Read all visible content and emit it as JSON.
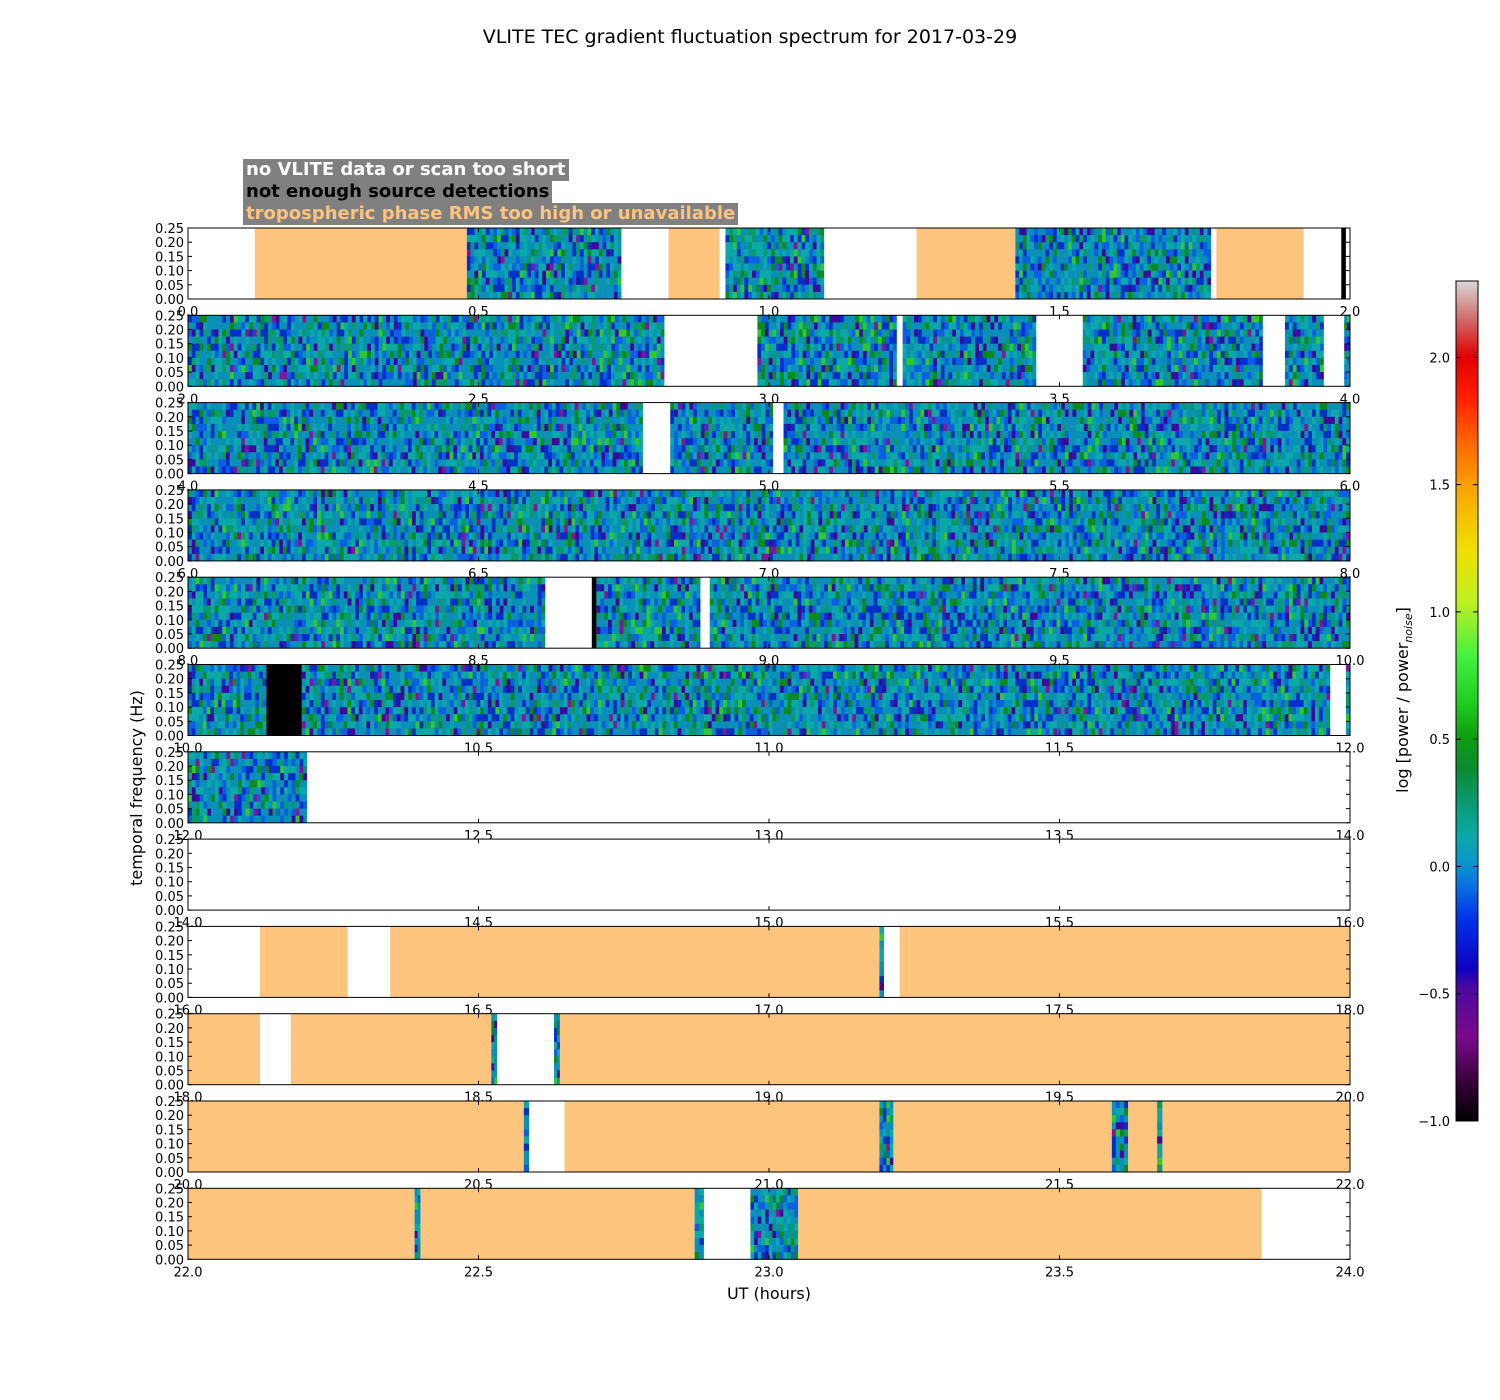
{
  "chart_data": {
    "type": "heatmap",
    "title": "VLITE TEC gradient fluctuation spectrum for 2017-03-29",
    "xlabel": "UT (hours)",
    "ylabel": "temporal frequency (Hz)",
    "colorbar_label": "log [power / power",
    "colorbar_label_subscript": "noise",
    "colorbar_label_close": "]",
    "colorbar_range": [
      -1.0,
      2.3
    ],
    "colorbar_ticks": [
      "−1.0",
      "−0.5",
      "0.0",
      "0.5",
      "1.0",
      "1.5",
      "2.0"
    ],
    "colorbar_tick_values": [
      -1.0,
      -0.5,
      0.0,
      0.5,
      1.0,
      1.5,
      2.0
    ],
    "ylim": [
      0.0,
      0.25
    ],
    "ytick_labels": [
      "0.00",
      "0.05",
      "0.10",
      "0.15",
      "0.20",
      "0.25"
    ],
    "ytick_values": [
      0.0,
      0.05,
      0.1,
      0.15,
      0.2,
      0.25
    ],
    "legend": [
      {
        "label": "no VLITE data or scan too short",
        "color": "#ffffff"
      },
      {
        "label": "not enough source detections",
        "color": "#000000"
      },
      {
        "label": "tropospheric phase RMS too high or unavailable",
        "color": "#fdc47e"
      }
    ],
    "panels": [
      {
        "xlim": [
          0,
          2
        ],
        "xticks": [
          "0.0",
          "0.5",
          "1.0",
          "1.5",
          "2.0"
        ],
        "segments": [
          {
            "x0": 0.0,
            "x1": 0.115,
            "state": "nodata"
          },
          {
            "x0": 0.115,
            "x1": 0.48,
            "state": "trop"
          },
          {
            "x0": 0.48,
            "x1": 0.746,
            "state": "spectrum"
          },
          {
            "x0": 0.746,
            "x1": 0.827,
            "state": "nodata"
          },
          {
            "x0": 0.827,
            "x1": 0.915,
            "state": "trop"
          },
          {
            "x0": 0.915,
            "x1": 0.925,
            "state": "nodata"
          },
          {
            "x0": 0.925,
            "x1": 1.095,
            "state": "spectrum"
          },
          {
            "x0": 1.095,
            "x1": 1.254,
            "state": "nodata"
          },
          {
            "x0": 1.254,
            "x1": 1.424,
            "state": "trop"
          },
          {
            "x0": 1.424,
            "x1": 1.761,
            "state": "spectrum"
          },
          {
            "x0": 1.761,
            "x1": 1.77,
            "state": "nodata"
          },
          {
            "x0": 1.77,
            "x1": 1.92,
            "state": "trop"
          },
          {
            "x0": 1.92,
            "x1": 1.985,
            "state": "nodata"
          },
          {
            "x0": 1.985,
            "x1": 1.993,
            "state": "nodet"
          },
          {
            "x0": 1.993,
            "x1": 2.0,
            "state": "nodata"
          }
        ]
      },
      {
        "xlim": [
          2,
          4
        ],
        "xticks": [
          "2.0",
          "2.5",
          "3.0",
          "3.5",
          "4.0"
        ],
        "segments": [
          {
            "x0": 2.0,
            "x1": 2.82,
            "state": "spectrum"
          },
          {
            "x0": 2.82,
            "x1": 2.98,
            "state": "nodata"
          },
          {
            "x0": 2.98,
            "x1": 3.22,
            "state": "spectrum"
          },
          {
            "x0": 3.22,
            "x1": 3.23,
            "state": "nodata"
          },
          {
            "x0": 3.23,
            "x1": 3.46,
            "state": "spectrum"
          },
          {
            "x0": 3.46,
            "x1": 3.54,
            "state": "nodata"
          },
          {
            "x0": 3.54,
            "x1": 3.85,
            "state": "spectrum"
          },
          {
            "x0": 3.85,
            "x1": 3.888,
            "state": "nodata"
          },
          {
            "x0": 3.888,
            "x1": 3.955,
            "state": "spectrum"
          },
          {
            "x0": 3.955,
            "x1": 3.99,
            "state": "nodata"
          },
          {
            "x0": 3.99,
            "x1": 4.0,
            "state": "spectrum"
          }
        ]
      },
      {
        "xlim": [
          4,
          6
        ],
        "xticks": [
          "4.0",
          "4.5",
          "5.0",
          "5.5",
          "6.0"
        ],
        "segments": [
          {
            "x0": 4.0,
            "x1": 4.783,
            "state": "spectrum"
          },
          {
            "x0": 4.783,
            "x1": 4.83,
            "state": "nodata"
          },
          {
            "x0": 4.83,
            "x1": 5.007,
            "state": "spectrum"
          },
          {
            "x0": 5.007,
            "x1": 5.025,
            "state": "nodata"
          },
          {
            "x0": 5.025,
            "x1": 6.0,
            "state": "spectrum"
          }
        ]
      },
      {
        "xlim": [
          6,
          8
        ],
        "xticks": [
          "6.0",
          "6.5",
          "7.0",
          "7.5",
          "8.0"
        ],
        "segments": [
          {
            "x0": 6.0,
            "x1": 8.0,
            "state": "spectrum"
          }
        ]
      },
      {
        "xlim": [
          8,
          10
        ],
        "xticks": [
          "8.0",
          "8.5",
          "9.0",
          "9.5",
          "10.0"
        ],
        "segments": [
          {
            "x0": 8.0,
            "x1": 8.615,
            "state": "spectrum"
          },
          {
            "x0": 8.615,
            "x1": 8.695,
            "state": "nodata"
          },
          {
            "x0": 8.695,
            "x1": 8.703,
            "state": "nodet"
          },
          {
            "x0": 8.703,
            "x1": 8.882,
            "state": "spectrum"
          },
          {
            "x0": 8.882,
            "x1": 8.898,
            "state": "nodata"
          },
          {
            "x0": 8.898,
            "x1": 10.0,
            "state": "spectrum"
          }
        ]
      },
      {
        "xlim": [
          10,
          12
        ],
        "xticks": [
          "10.0",
          "10.5",
          "11.0",
          "11.5",
          "12.0"
        ],
        "segments": [
          {
            "x0": 10.0,
            "x1": 10.135,
            "state": "spectrum"
          },
          {
            "x0": 10.135,
            "x1": 10.196,
            "state": "nodet"
          },
          {
            "x0": 10.196,
            "x1": 11.966,
            "state": "spectrum"
          },
          {
            "x0": 11.966,
            "x1": 11.993,
            "state": "nodata"
          },
          {
            "x0": 11.993,
            "x1": 12.0,
            "state": "spectrum"
          }
        ]
      },
      {
        "xlim": [
          12,
          14
        ],
        "xticks": [
          "12.0",
          "12.5",
          "13.0",
          "13.5",
          "14.0"
        ],
        "segments": [
          {
            "x0": 12.0,
            "x1": 12.205,
            "state": "spectrum"
          },
          {
            "x0": 12.205,
            "x1": 14.0,
            "state": "nodata"
          }
        ]
      },
      {
        "xlim": [
          14,
          16
        ],
        "xticks": [
          "14.0",
          "14.5",
          "15.0",
          "15.5",
          "16.0"
        ],
        "segments": [
          {
            "x0": 14.0,
            "x1": 16.0,
            "state": "nodata"
          }
        ]
      },
      {
        "xlim": [
          16,
          18
        ],
        "xticks": [
          "16.0",
          "16.5",
          "17.0",
          "17.5",
          "18.0"
        ],
        "segments": [
          {
            "x0": 16.0,
            "x1": 16.124,
            "state": "nodata"
          },
          {
            "x0": 16.124,
            "x1": 16.275,
            "state": "trop"
          },
          {
            "x0": 16.275,
            "x1": 16.348,
            "state": "nodata"
          },
          {
            "x0": 16.348,
            "x1": 17.19,
            "state": "trop"
          },
          {
            "x0": 17.19,
            "x1": 17.198,
            "state": "spectrum"
          },
          {
            "x0": 17.198,
            "x1": 17.225,
            "state": "nodata"
          },
          {
            "x0": 17.225,
            "x1": 18.0,
            "state": "trop"
          }
        ]
      },
      {
        "xlim": [
          18,
          20
        ],
        "xticks": [
          "18.0",
          "18.5",
          "19.0",
          "19.5",
          "20.0"
        ],
        "segments": [
          {
            "x0": 18.0,
            "x1": 18.124,
            "state": "trop"
          },
          {
            "x0": 18.124,
            "x1": 18.177,
            "state": "nodata"
          },
          {
            "x0": 18.177,
            "x1": 18.522,
            "state": "trop"
          },
          {
            "x0": 18.522,
            "x1": 18.532,
            "state": "spectrum"
          },
          {
            "x0": 18.532,
            "x1": 18.63,
            "state": "nodata"
          },
          {
            "x0": 18.63,
            "x1": 18.64,
            "state": "spectrum"
          },
          {
            "x0": 18.64,
            "x1": 20.0,
            "state": "trop"
          }
        ]
      },
      {
        "xlim": [
          20,
          22
        ],
        "xticks": [
          "20.0",
          "20.5",
          "21.0",
          "21.5",
          "22.0"
        ],
        "segments": [
          {
            "x0": 20.0,
            "x1": 20.578,
            "state": "trop"
          },
          {
            "x0": 20.578,
            "x1": 20.587,
            "state": "spectrum"
          },
          {
            "x0": 20.587,
            "x1": 20.648,
            "state": "nodata"
          },
          {
            "x0": 20.648,
            "x1": 21.19,
            "state": "trop"
          },
          {
            "x0": 21.19,
            "x1": 21.214,
            "state": "spectrum"
          },
          {
            "x0": 21.214,
            "x1": 21.59,
            "state": "trop"
          },
          {
            "x0": 21.59,
            "x1": 21.618,
            "state": "spectrum"
          },
          {
            "x0": 21.618,
            "x1": 21.668,
            "state": "trop"
          },
          {
            "x0": 21.668,
            "x1": 21.677,
            "state": "spectrum"
          },
          {
            "x0": 21.677,
            "x1": 22.0,
            "state": "trop"
          }
        ]
      },
      {
        "xlim": [
          22,
          24
        ],
        "xticks": [
          "22.0",
          "22.5",
          "23.0",
          "23.5",
          "24.0"
        ],
        "segments": [
          {
            "x0": 22.0,
            "x1": 22.39,
            "state": "trop"
          },
          {
            "x0": 22.39,
            "x1": 22.4,
            "state": "spectrum"
          },
          {
            "x0": 22.4,
            "x1": 22.872,
            "state": "trop"
          },
          {
            "x0": 22.872,
            "x1": 22.888,
            "state": "spectrum"
          },
          {
            "x0": 22.888,
            "x1": 22.968,
            "state": "nodata"
          },
          {
            "x0": 22.968,
            "x1": 23.05,
            "state": "spectrum"
          },
          {
            "x0": 23.05,
            "x1": 23.848,
            "state": "trop"
          },
          {
            "x0": 23.848,
            "x1": 24.0,
            "state": "nodata"
          }
        ]
      }
    ]
  },
  "colors": {
    "nodata": "#ffffff",
    "nodet": "#000000",
    "trop": "#fdc47e",
    "legend_box": "#808080",
    "axis": "#000000"
  }
}
